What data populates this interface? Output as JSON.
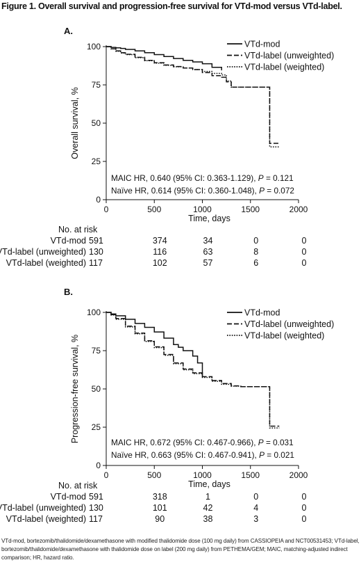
{
  "figure": {
    "title": "Figure 1. Overall survival and progression-free survival for VTd-mod versus VTd-label.",
    "footnote": "VTd-mod, bortezomib/thalidomide/dexamethasone with modified thalidomide dose (100 mg daily) from CASSIOPEIA and NCT00531453; VTd-label, bortezomib/thalidomide/dexamethasone with thalidomide dose on label (200 mg daily) from PETHEMA/GEM; MAIC, matching-adjusted indirect comparison; HR, hazard ratio."
  },
  "chart_data": [
    {
      "panel": "A.",
      "type": "line",
      "xlabel": "Time, days",
      "ylabel": "Overall survival, %",
      "xlim": [
        0,
        2000
      ],
      "ylim": [
        0,
        100
      ],
      "xticks": [
        0,
        500,
        1000,
        1500,
        2000
      ],
      "yticks": [
        0,
        25,
        50,
        75,
        100
      ],
      "legend_position": "top-right",
      "series": [
        {
          "name": "VTd-mod",
          "style": "solid",
          "x": [
            0,
            50,
            100,
            150,
            200,
            300,
            400,
            500,
            600,
            700,
            800,
            900,
            1000,
            1100,
            1200
          ],
          "y": [
            100,
            99.5,
            99.2,
            98.8,
            98.2,
            97.2,
            96,
            94.8,
            93.5,
            92.2,
            91,
            90,
            88.8,
            86.5,
            84.5
          ]
        },
        {
          "name": "VTd-label (unweighted)",
          "style": "dashed",
          "x": [
            0,
            50,
            100,
            150,
            200,
            300,
            400,
            500,
            600,
            700,
            800,
            900,
            1000,
            1100,
            1200,
            1250,
            1300,
            1400,
            1500,
            1600,
            1700,
            1800
          ],
          "y": [
            100,
            98.6,
            97.2,
            96,
            95,
            93,
            91,
            89.5,
            88,
            87,
            86,
            85,
            83,
            81,
            80,
            77,
            73.5,
            73.5,
            73.5,
            73.5,
            36.8,
            36.8
          ]
        },
        {
          "name": "VTd-label (weighted)",
          "style": "dotted",
          "x": [
            0,
            50,
            100,
            150,
            200,
            300,
            400,
            500,
            600,
            700,
            800,
            900,
            1000,
            1100,
            1200,
            1250,
            1300,
            1400,
            1500,
            1600,
            1700,
            1800
          ],
          "y": [
            100,
            98.5,
            97,
            95.8,
            94.8,
            92.8,
            90.8,
            89.2,
            87.8,
            86.8,
            86,
            85,
            83.8,
            82.5,
            81.5,
            77.5,
            73.5,
            73.5,
            73.5,
            73.5,
            34.5,
            34.5
          ]
        }
      ],
      "annotations": [
        {
          "label": "MAIC HR, 0.640 (95% CI: 0.363-1.129), ",
          "p_label": "P",
          "p_value": " = 0.121"
        },
        {
          "label": "Naïve HR, 0.614 (95% CI: 0.360-1.048), ",
          "p_label": "P",
          "p_value": " = 0.072"
        }
      ],
      "risk_table": {
        "title": "No. at risk",
        "time_points": [
          0,
          500,
          1000,
          1500,
          2000
        ],
        "rows": [
          {
            "label": "VTd-mod",
            "values": [
              591,
              374,
              34,
              0,
              0
            ]
          },
          {
            "label": "VTd-label (unweighted)",
            "values": [
              130,
              116,
              63,
              8,
              0
            ]
          },
          {
            "label": "VTd-label (weighted)",
            "values": [
              117,
              102,
              57,
              6,
              0
            ]
          }
        ]
      }
    },
    {
      "panel": "B.",
      "type": "line",
      "xlabel": "Time, days",
      "ylabel": "Progression-free survival, %",
      "xlim": [
        0,
        2000
      ],
      "ylim": [
        0,
        100
      ],
      "xticks": [
        0,
        500,
        1000,
        1500,
        2000
      ],
      "yticks": [
        0,
        25,
        50,
        75,
        100
      ],
      "legend_position": "top-right",
      "series": [
        {
          "name": "VTd-mod",
          "style": "solid",
          "x": [
            0,
            50,
            100,
            200,
            300,
            400,
            500,
            600,
            700,
            750,
            800,
            900,
            950,
            1000
          ],
          "y": [
            100,
            99,
            97.8,
            95.5,
            92.8,
            90.2,
            87.2,
            83.2,
            79,
            77.2,
            75,
            71.5,
            67,
            58
          ]
        },
        {
          "name": "VTd-label (unweighted)",
          "style": "dashed",
          "x": [
            0,
            50,
            100,
            200,
            300,
            400,
            500,
            600,
            700,
            800,
            900,
            1000,
            1100,
            1200,
            1300,
            1400,
            1500,
            1600,
            1700,
            1800
          ],
          "y": [
            100,
            98.5,
            96,
            91,
            86.5,
            81.5,
            77.5,
            72.5,
            67,
            63,
            60.5,
            58,
            55.5,
            53.5,
            52,
            51.5,
            51.5,
            51.5,
            25.7,
            25.7
          ]
        },
        {
          "name": "VTd-label (weighted)",
          "style": "dotted",
          "x": [
            0,
            50,
            100,
            200,
            300,
            400,
            500,
            600,
            700,
            800,
            900,
            1000,
            1100,
            1200,
            1300,
            1400,
            1500,
            1600,
            1700,
            1800
          ],
          "y": [
            100,
            98.3,
            95.5,
            90.5,
            86,
            81,
            77,
            72,
            66.5,
            62.5,
            60,
            57.5,
            55,
            53,
            51.8,
            51.5,
            51.5,
            51.5,
            24.5,
            24.5
          ]
        }
      ],
      "annotations": [
        {
          "label": "MAIC HR, 0.672 (95% CI: 0.467-0.966), ",
          "p_label": "P",
          "p_value": " = 0.031"
        },
        {
          "label": "Naïve HR, 0.663 (95% CI: 0.467-0.941), ",
          "p_label": "P",
          "p_value": " = 0.021"
        }
      ],
      "risk_table": {
        "title": "No. at risk",
        "time_points": [
          0,
          500,
          1000,
          1500,
          2000
        ],
        "rows": [
          {
            "label": "VTd-mod",
            "values": [
              591,
              318,
              1,
              0,
              0
            ]
          },
          {
            "label": "VTd-label (unweighted)",
            "values": [
              130,
              101,
              42,
              4,
              0
            ]
          },
          {
            "label": "VTd-label (weighted)",
            "values": [
              117,
              90,
              38,
              3,
              0
            ]
          }
        ]
      }
    }
  ]
}
